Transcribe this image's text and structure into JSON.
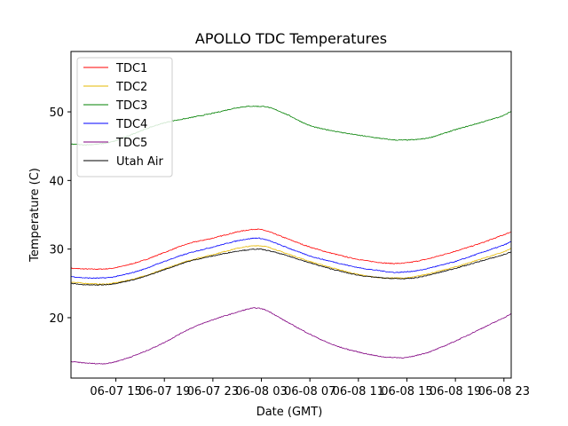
{
  "chart_data": {
    "type": "line",
    "title": "APOLLO TDC Temperatures",
    "xlabel": "Date (GMT)",
    "ylabel": "Temperature (C)",
    "x_units": "hours since 06-07 00 GMT",
    "xlim": [
      11.3,
      47.6
    ],
    "ylim": [
      11.2,
      58.8
    ],
    "xticks": [
      {
        "value": 15,
        "label": "06-07 15"
      },
      {
        "value": 19,
        "label": "06-07 19"
      },
      {
        "value": 23,
        "label": "06-07 23"
      },
      {
        "value": 27,
        "label": "06-08 03"
      },
      {
        "value": 31,
        "label": "06-08 07"
      },
      {
        "value": 35,
        "label": "06-08 11"
      },
      {
        "value": 39,
        "label": "06-08 15"
      },
      {
        "value": 43,
        "label": "06-08 19"
      },
      {
        "value": 47,
        "label": "06-08 23"
      }
    ],
    "yticks": [
      {
        "value": 20,
        "label": "20"
      },
      {
        "value": 30,
        "label": "30"
      },
      {
        "value": 40,
        "label": "40"
      },
      {
        "value": 50,
        "label": "50"
      }
    ],
    "legend_position": "top-left",
    "grid": false,
    "x": [
      11.3,
      12.5,
      14,
      15,
      17,
      19,
      21,
      23,
      25,
      26,
      26.7,
      27.5,
      29,
      31,
      33,
      35,
      37,
      38,
      39,
      40,
      41,
      43,
      45,
      47,
      47.6
    ],
    "series": [
      {
        "name": "TDC1",
        "color": "#ff0000",
        "values": [
          27.2,
          27.1,
          27.1,
          27.3,
          28.2,
          29.5,
          30.8,
          31.6,
          32.5,
          32.8,
          32.9,
          32.6,
          31.6,
          30.3,
          29.3,
          28.5,
          28.0,
          27.9,
          28.0,
          28.3,
          28.7,
          29.7,
          30.8,
          32.1,
          32.5
        ]
      },
      {
        "name": "TDC2",
        "color": "#e6b800",
        "values": [
          25.2,
          25.0,
          24.9,
          25.1,
          25.9,
          27.1,
          28.3,
          29.2,
          30.1,
          30.4,
          30.5,
          30.3,
          29.4,
          28.2,
          27.2,
          26.3,
          25.8,
          25.8,
          25.8,
          26.1,
          26.5,
          27.4,
          28.5,
          29.6,
          30.1
        ]
      },
      {
        "name": "TDC3",
        "color": "#008000",
        "values": [
          45.3,
          45.2,
          45.4,
          45.8,
          47.2,
          48.4,
          49.1,
          49.8,
          50.6,
          50.8,
          50.8,
          50.7,
          49.7,
          48.0,
          47.2,
          46.6,
          46.1,
          45.9,
          45.9,
          46.0,
          46.3,
          47.4,
          48.4,
          49.5,
          50.1
        ]
      },
      {
        "name": "TDC4",
        "color": "#0000ff",
        "values": [
          26.0,
          25.8,
          25.8,
          26.0,
          26.9,
          28.2,
          29.4,
          30.3,
          31.2,
          31.5,
          31.6,
          31.3,
          30.3,
          29.0,
          28.1,
          27.3,
          26.8,
          26.6,
          26.7,
          26.9,
          27.3,
          28.2,
          29.4,
          30.6,
          31.1
        ]
      },
      {
        "name": "TDC5",
        "color": "#800080",
        "values": [
          13.6,
          13.4,
          13.3,
          13.6,
          14.8,
          16.4,
          18.3,
          19.7,
          20.8,
          21.3,
          21.4,
          21.0,
          19.5,
          17.6,
          16.0,
          15.0,
          14.3,
          14.2,
          14.2,
          14.6,
          15.1,
          16.6,
          18.3,
          20.0,
          20.6
        ]
      },
      {
        "name": "Utah Air",
        "color": "#000000",
        "values": [
          25.0,
          24.8,
          24.8,
          25.0,
          25.8,
          27.0,
          28.2,
          29.0,
          29.7,
          29.9,
          30.0,
          29.8,
          29.1,
          28.0,
          27.0,
          26.2,
          25.8,
          25.7,
          25.7,
          25.9,
          26.3,
          27.2,
          28.2,
          29.2,
          29.6
        ]
      }
    ]
  }
}
